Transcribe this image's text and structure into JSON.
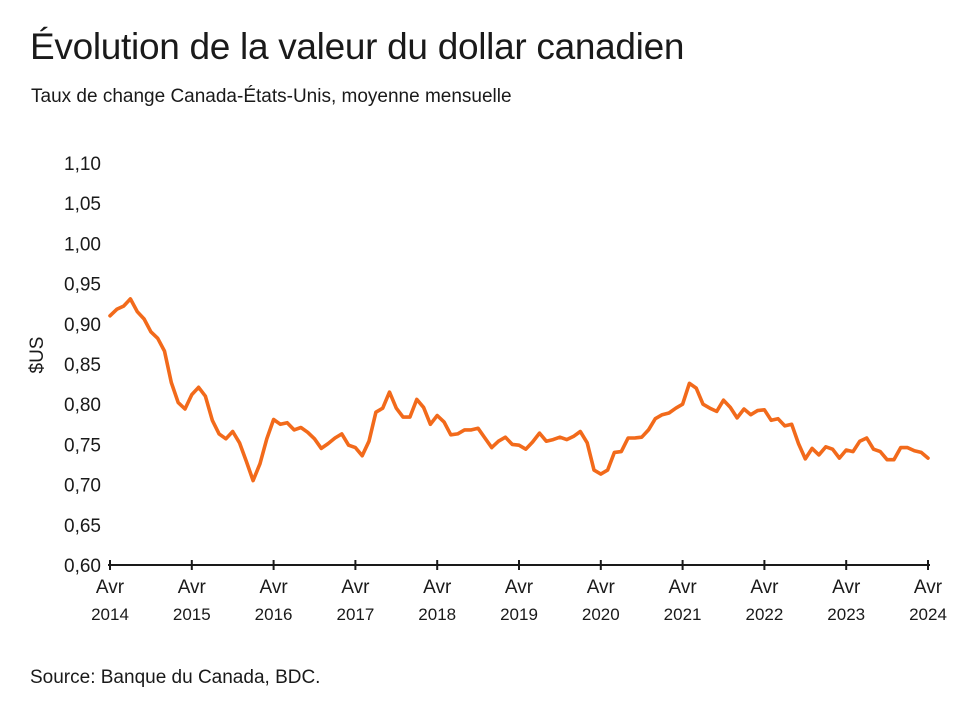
{
  "title": "Évolution de la valeur du dollar canadien",
  "subtitle": "Taux de change Canada-États-Unis, moyenne mensuelle",
  "source": "Source: Banque du Canada, BDC.",
  "chart_data": {
    "type": "line",
    "ylabel": "$US",
    "xlabel": "",
    "ylim": [
      0.6,
      1.1
    ],
    "y_ticks": [
      "1,10",
      "1,05",
      "1,00",
      "0,95",
      "0,90",
      "0,85",
      "0,80",
      "0,75",
      "0,70",
      "0,65",
      "0,60"
    ],
    "y_tick_values": [
      1.1,
      1.05,
      1.0,
      0.95,
      0.9,
      0.85,
      0.8,
      0.75,
      0.7,
      0.65,
      0.6
    ],
    "x_ticks": [
      {
        "month": "Avr",
        "year": "2014",
        "date": "2014-04"
      },
      {
        "month": "Avr",
        "year": "2015",
        "date": "2015-04"
      },
      {
        "month": "Avr",
        "year": "2016",
        "date": "2016-04"
      },
      {
        "month": "Avr",
        "year": "2017",
        "date": "2017-04"
      },
      {
        "month": "Avr",
        "year": "2018",
        "date": "2018-04"
      },
      {
        "month": "Avr",
        "year": "2019",
        "date": "2019-04"
      },
      {
        "month": "Avr",
        "year": "2020",
        "date": "2020-04"
      },
      {
        "month": "Avr",
        "year": "2021",
        "date": "2021-04"
      },
      {
        "month": "Avr",
        "year": "2022",
        "date": "2022-04"
      },
      {
        "month": "Avr",
        "year": "2023",
        "date": "2023-04"
      },
      {
        "month": "Avr",
        "year": "2024",
        "date": "2024-04"
      }
    ],
    "x_range": [
      "2014-04",
      "2024-04"
    ],
    "grid": false,
    "line_color": "#f26a1b",
    "series": [
      {
        "values": [
          [
            "2014-04",
            0.91
          ],
          [
            "2014-05",
            0.918
          ],
          [
            "2014-06",
            0.922
          ],
          [
            "2014-07",
            0.931
          ],
          [
            "2014-08",
            0.915
          ],
          [
            "2014-09",
            0.906
          ],
          [
            "2014-10",
            0.89
          ],
          [
            "2014-11",
            0.882
          ],
          [
            "2014-12",
            0.866
          ],
          [
            "2015-01",
            0.827
          ],
          [
            "2015-02",
            0.802
          ],
          [
            "2015-03",
            0.794
          ],
          [
            "2015-04",
            0.812
          ],
          [
            "2015-05",
            0.821
          ],
          [
            "2015-06",
            0.81
          ],
          [
            "2015-07",
            0.78
          ],
          [
            "2015-08",
            0.763
          ],
          [
            "2015-09",
            0.757
          ],
          [
            "2015-10",
            0.766
          ],
          [
            "2015-11",
            0.752
          ],
          [
            "2015-12",
            0.729
          ],
          [
            "2016-01",
            0.705
          ],
          [
            "2016-02",
            0.726
          ],
          [
            "2016-03",
            0.757
          ],
          [
            "2016-04",
            0.781
          ],
          [
            "2016-05",
            0.775
          ],
          [
            "2016-06",
            0.777
          ],
          [
            "2016-07",
            0.768
          ],
          [
            "2016-08",
            0.771
          ],
          [
            "2016-09",
            0.765
          ],
          [
            "2016-10",
            0.757
          ],
          [
            "2016-11",
            0.745
          ],
          [
            "2016-12",
            0.751
          ],
          [
            "2017-01",
            0.758
          ],
          [
            "2017-02",
            0.763
          ],
          [
            "2017-03",
            0.749
          ],
          [
            "2017-04",
            0.746
          ],
          [
            "2017-05",
            0.736
          ],
          [
            "2017-06",
            0.754
          ],
          [
            "2017-07",
            0.79
          ],
          [
            "2017-08",
            0.795
          ],
          [
            "2017-09",
            0.815
          ],
          [
            "2017-10",
            0.795
          ],
          [
            "2017-11",
            0.784
          ],
          [
            "2017-12",
            0.784
          ],
          [
            "2018-01",
            0.806
          ],
          [
            "2018-02",
            0.796
          ],
          [
            "2018-03",
            0.775
          ],
          [
            "2018-04",
            0.786
          ],
          [
            "2018-05",
            0.778
          ],
          [
            "2018-06",
            0.762
          ],
          [
            "2018-07",
            0.763
          ],
          [
            "2018-08",
            0.768
          ],
          [
            "2018-09",
            0.768
          ],
          [
            "2018-10",
            0.77
          ],
          [
            "2018-11",
            0.758
          ],
          [
            "2018-12",
            0.746
          ],
          [
            "2019-01",
            0.754
          ],
          [
            "2019-02",
            0.759
          ],
          [
            "2019-03",
            0.75
          ],
          [
            "2019-04",
            0.749
          ],
          [
            "2019-05",
            0.744
          ],
          [
            "2019-06",
            0.753
          ],
          [
            "2019-07",
            0.764
          ],
          [
            "2019-08",
            0.754
          ],
          [
            "2019-09",
            0.756
          ],
          [
            "2019-10",
            0.759
          ],
          [
            "2019-11",
            0.756
          ],
          [
            "2019-12",
            0.76
          ],
          [
            "2020-01",
            0.766
          ],
          [
            "2020-02",
            0.752
          ],
          [
            "2020-03",
            0.718
          ],
          [
            "2020-04",
            0.713
          ],
          [
            "2020-05",
            0.718
          ],
          [
            "2020-06",
            0.74
          ],
          [
            "2020-07",
            0.741
          ],
          [
            "2020-08",
            0.758
          ],
          [
            "2020-09",
            0.758
          ],
          [
            "2020-10",
            0.759
          ],
          [
            "2020-11",
            0.768
          ],
          [
            "2020-12",
            0.782
          ],
          [
            "2021-01",
            0.787
          ],
          [
            "2021-02",
            0.789
          ],
          [
            "2021-03",
            0.795
          ],
          [
            "2021-04",
            0.8
          ],
          [
            "2021-05",
            0.826
          ],
          [
            "2021-06",
            0.82
          ],
          [
            "2021-07",
            0.8
          ],
          [
            "2021-08",
            0.795
          ],
          [
            "2021-09",
            0.791
          ],
          [
            "2021-10",
            0.805
          ],
          [
            "2021-11",
            0.796
          ],
          [
            "2021-12",
            0.783
          ],
          [
            "2022-01",
            0.794
          ],
          [
            "2022-02",
            0.787
          ],
          [
            "2022-03",
            0.792
          ],
          [
            "2022-04",
            0.793
          ],
          [
            "2022-05",
            0.78
          ],
          [
            "2022-06",
            0.782
          ],
          [
            "2022-07",
            0.773
          ],
          [
            "2022-08",
            0.775
          ],
          [
            "2022-09",
            0.751
          ],
          [
            "2022-10",
            0.732
          ],
          [
            "2022-11",
            0.745
          ],
          [
            "2022-12",
            0.737
          ],
          [
            "2023-01",
            0.747
          ],
          [
            "2023-02",
            0.744
          ],
          [
            "2023-03",
            0.733
          ],
          [
            "2023-04",
            0.743
          ],
          [
            "2023-05",
            0.741
          ],
          [
            "2023-06",
            0.754
          ],
          [
            "2023-07",
            0.758
          ],
          [
            "2023-08",
            0.744
          ],
          [
            "2023-09",
            0.741
          ],
          [
            "2023-10",
            0.731
          ],
          [
            "2023-11",
            0.731
          ],
          [
            "2023-12",
            0.746
          ],
          [
            "2024-01",
            0.746
          ],
          [
            "2024-02",
            0.742
          ],
          [
            "2024-03",
            0.74
          ],
          [
            "2024-04",
            0.733
          ]
        ]
      }
    ]
  }
}
